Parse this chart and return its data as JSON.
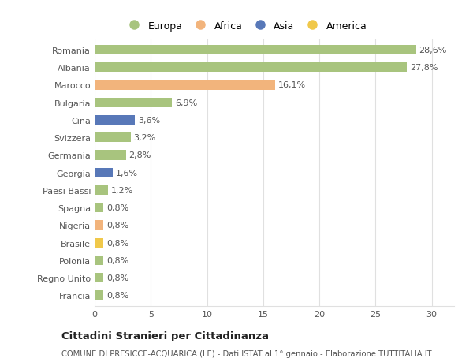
{
  "categories": [
    "Romania",
    "Albania",
    "Marocco",
    "Bulgaria",
    "Cina",
    "Svizzera",
    "Germania",
    "Georgia",
    "Paesi Bassi",
    "Spagna",
    "Nigeria",
    "Brasile",
    "Polonia",
    "Regno Unito",
    "Francia"
  ],
  "values": [
    28.6,
    27.8,
    16.1,
    6.9,
    3.6,
    3.2,
    2.8,
    1.6,
    1.2,
    0.8,
    0.8,
    0.8,
    0.8,
    0.8,
    0.8
  ],
  "labels": [
    "28,6%",
    "27,8%",
    "16,1%",
    "6,9%",
    "3,6%",
    "3,2%",
    "2,8%",
    "1,6%",
    "1,2%",
    "0,8%",
    "0,8%",
    "0,8%",
    "0,8%",
    "0,8%",
    "0,8%"
  ],
  "colors": [
    "#a8c47e",
    "#a8c47e",
    "#f2b47c",
    "#a8c47e",
    "#5878b8",
    "#a8c47e",
    "#a8c47e",
    "#5878b8",
    "#a8c47e",
    "#a8c47e",
    "#f2b47c",
    "#f0c84a",
    "#a8c47e",
    "#a8c47e",
    "#a8c47e"
  ],
  "continent": [
    "Europa",
    "Europa",
    "Africa",
    "Europa",
    "Asia",
    "Europa",
    "Europa",
    "Asia",
    "Europa",
    "Europa",
    "Africa",
    "America",
    "Europa",
    "Europa",
    "Europa"
  ],
  "legend_labels": [
    "Europa",
    "Africa",
    "Asia",
    "America"
  ],
  "legend_colors": [
    "#a8c47e",
    "#f2b47c",
    "#5878b8",
    "#f0c84a"
  ],
  "title": "Cittadini Stranieri per Cittadinanza",
  "subtitle": "COMUNE DI PRESICCE-ACQUARICA (LE) - Dati ISTAT al 1° gennaio - Elaborazione TUTTITALIA.IT",
  "xlim": [
    0,
    32
  ],
  "xticks": [
    0,
    5,
    10,
    15,
    20,
    25,
    30
  ],
  "background_color": "#ffffff",
  "grid_color": "#e0e0e0",
  "bar_height": 0.55,
  "label_fontsize": 8,
  "tick_fontsize": 8
}
